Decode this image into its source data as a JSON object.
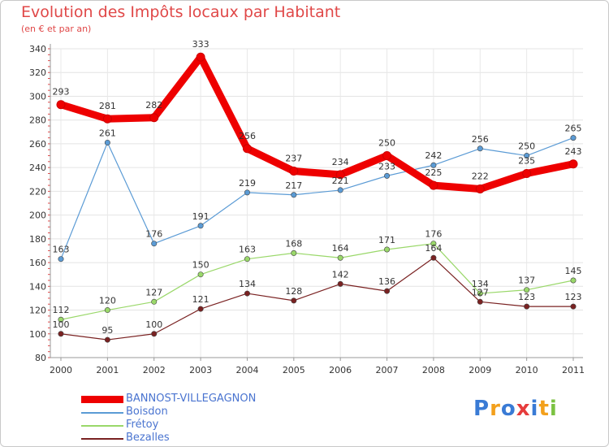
{
  "title": "Evolution des Impôts locaux par Habitant",
  "subtitle": "(en € et par an)",
  "logo": {
    "letters": [
      "P",
      "r",
      "o",
      "x",
      "i",
      "t",
      "i"
    ],
    "colors": [
      "#3a7bd5",
      "#f3a01c",
      "#3a7bd5",
      "#e63c3c",
      "#3a7bd5",
      "#f3a01c",
      "#7cc242"
    ]
  },
  "chart_data": {
    "type": "line",
    "x": [
      "2000",
      "2001",
      "2002",
      "2003",
      "2004",
      "2005",
      "2006",
      "2007",
      "2008",
      "2009",
      "2010",
      "2011"
    ],
    "ylim": [
      80,
      340
    ],
    "yticks": [
      80,
      100,
      120,
      140,
      160,
      180,
      200,
      220,
      240,
      260,
      280,
      300,
      320,
      340
    ],
    "grid": true,
    "legend_position": "bottom",
    "series": [
      {
        "name": "BANNOST-VILLEGAGNON",
        "color": "#ee0000",
        "width": 9,
        "marker": 5,
        "values": [
          293,
          281,
          282,
          333,
          256,
          237,
          234,
          250,
          225,
          222,
          235,
          243
        ],
        "labels": [
          "293",
          "281",
          "282",
          "333",
          "256",
          "237",
          "234",
          "250",
          "225",
          "222",
          "235",
          "243"
        ]
      },
      {
        "name": "Boisdon",
        "color": "#5b9bd5",
        "width": 1.2,
        "marker": 3.2,
        "values": [
          163,
          261,
          176,
          191,
          219,
          217,
          221,
          233,
          242,
          256,
          250,
          265
        ],
        "labels": [
          "163",
          "261",
          "176",
          "191",
          "219",
          "217",
          "221",
          "233",
          "242",
          "256",
          "250",
          "265"
        ]
      },
      {
        "name": "Frétoy",
        "color": "#9ad86a",
        "width": 1.2,
        "marker": 3.2,
        "values": [
          112,
          120,
          127,
          150,
          163,
          168,
          164,
          171,
          176,
          134,
          137,
          145
        ],
        "labels": [
          "112",
          "120",
          "127",
          "150",
          "163",
          "168",
          "164",
          "171",
          "176",
          "134",
          "137",
          "145"
        ]
      },
      {
        "name": "Bezalles",
        "color": "#7a2222",
        "width": 1.2,
        "marker": 3.2,
        "values": [
          100,
          95,
          100,
          121,
          134,
          128,
          142,
          136,
          164,
          127,
          123,
          123
        ],
        "labels": [
          "100",
          "95",
          "100",
          "121",
          "134",
          "128",
          "142",
          "136",
          "164",
          "127",
          "123",
          "123"
        ]
      }
    ]
  }
}
